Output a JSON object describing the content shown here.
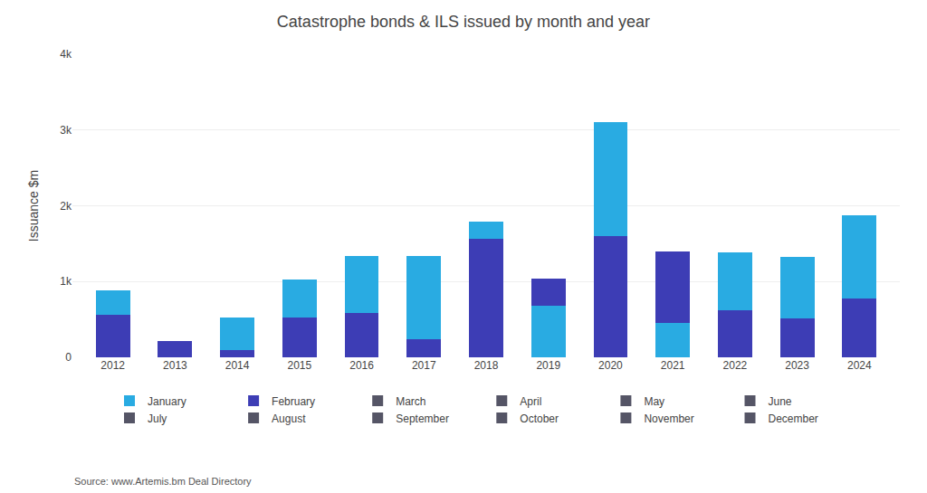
{
  "chart_data": {
    "type": "bar",
    "title": "Catastrophe bonds & ILS issued by month and year",
    "ylabel": "Issuance $m",
    "annotations": [
      "Source: www.Artemis.bm Deal Directory"
    ],
    "categories": [
      "2012",
      "2013",
      "2014",
      "2015",
      "2016",
      "2017",
      "2018",
      "2019",
      "2020",
      "2021",
      "2022",
      "2023",
      "2024"
    ],
    "stacked": true,
    "grid": true,
    "series": [
      {
        "name": "February",
        "color": "#3D3DB5",
        "values": [
          560,
          210,
          100,
          530,
          580,
          240,
          1570,
          0,
          1600,
          0,
          620,
          510,
          780
        ]
      },
      {
        "name": "January",
        "color": "#29ABE2",
        "values": [
          320,
          0,
          430,
          500,
          760,
          1100,
          220,
          680,
          1500,
          450,
          760,
          820,
          1100
        ]
      },
      {
        "color": "#3D3DB5",
        "values": [
          0,
          0,
          0,
          0,
          0,
          0,
          0,
          360,
          0,
          950,
          0,
          0,
          0
        ]
      },
      {
        "name": "March",
        "color": "#555566",
        "values": [
          null,
          null,
          null,
          null,
          null,
          null,
          null,
          null,
          null,
          null,
          null,
          null,
          null
        ]
      },
      {
        "name": "April",
        "color": "#555566",
        "values": [
          null,
          null,
          null,
          null,
          null,
          null,
          null,
          null,
          null,
          null,
          null,
          null,
          null
        ]
      },
      {
        "name": "May",
        "color": "#555566",
        "values": [
          null,
          null,
          null,
          null,
          null,
          null,
          null,
          null,
          null,
          null,
          null,
          null,
          null
        ]
      },
      {
        "name": "June",
        "color": "#555566",
        "values": [
          null,
          null,
          null,
          null,
          null,
          null,
          null,
          null,
          null,
          null,
          null,
          null,
          null
        ]
      },
      {
        "name": "July",
        "color": "#555566",
        "values": [
          null,
          null,
          null,
          null,
          null,
          null,
          null,
          null,
          null,
          null,
          null,
          null,
          null
        ]
      },
      {
        "name": "August",
        "color": "#555566",
        "values": [
          null,
          null,
          null,
          null,
          null,
          null,
          null,
          null,
          null,
          null,
          null,
          null,
          null
        ]
      },
      {
        "name": "September",
        "color": "#555566",
        "values": [
          null,
          null,
          null,
          null,
          null,
          null,
          null,
          null,
          null,
          null,
          null,
          null,
          null
        ]
      },
      {
        "name": "October",
        "color": "#555566",
        "values": [
          null,
          null,
          null,
          null,
          null,
          null,
          null,
          null,
          null,
          null,
          null,
          null,
          null
        ]
      },
      {
        "name": "November",
        "color": "#555566",
        "values": [
          null,
          null,
          null,
          null,
          null,
          null,
          null,
          null,
          null,
          null,
          null,
          null,
          null
        ]
      },
      {
        "name": "December",
        "color": "#555566",
        "values": [
          null,
          null,
          null,
          null,
          null,
          null,
          null,
          null,
          null,
          null,
          null,
          null,
          null
        ]
      }
    ],
    "ylim": [
      0,
      4000
    ],
    "yticks": [
      0,
      {
        "value": 1000,
        "label": "1k"
      },
      {
        "value": 2000,
        "label": "2k"
      },
      {
        "value": 3000,
        "label": "3k"
      },
      {
        "value": 4000,
        "label": "4k"
      }
    ]
  }
}
